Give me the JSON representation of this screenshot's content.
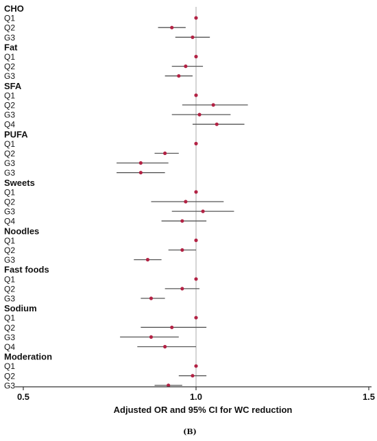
{
  "chart_data": {
    "type": "forest",
    "xlabel": "Adjusted OR and 95% CI for WC reduction",
    "panel_label": "(B)",
    "xlim": [
      0.5,
      1.5
    ],
    "xticks": [
      "0.5",
      "1.0",
      "1.5"
    ],
    "reference_line": 1.0,
    "colors": {
      "point": "#b22244",
      "ci": "#555555",
      "ref": "#aaaaaa",
      "axis": "#333333"
    },
    "groups": [
      {
        "name": "CHO",
        "rows": [
          {
            "label": "Q1",
            "or": 1.0,
            "lower": 1.0,
            "upper": 1.0
          },
          {
            "label": "Q2",
            "or": 0.93,
            "lower": 0.89,
            "upper": 0.97
          },
          {
            "label": "G3",
            "or": 0.99,
            "lower": 0.94,
            "upper": 1.04
          }
        ]
      },
      {
        "name": "Fat",
        "rows": [
          {
            "label": "Q1",
            "or": 1.0,
            "lower": 1.0,
            "upper": 1.0
          },
          {
            "label": "Q2",
            "or": 0.97,
            "lower": 0.93,
            "upper": 1.02
          },
          {
            "label": "G3",
            "or": 0.95,
            "lower": 0.91,
            "upper": 0.99
          }
        ]
      },
      {
        "name": "SFA",
        "rows": [
          {
            "label": "Q1",
            "or": 1.0,
            "lower": 1.0,
            "upper": 1.0
          },
          {
            "label": "Q2",
            "or": 1.05,
            "lower": 0.96,
            "upper": 1.15
          },
          {
            "label": "G3",
            "or": 1.01,
            "lower": 0.93,
            "upper": 1.1
          },
          {
            "label": "Q4",
            "or": 1.06,
            "lower": 0.99,
            "upper": 1.14
          }
        ]
      },
      {
        "name": "PUFA",
        "rows": [
          {
            "label": "Q1",
            "or": 1.0,
            "lower": 1.0,
            "upper": 1.0
          },
          {
            "label": "Q2",
            "or": 0.91,
            "lower": 0.88,
            "upper": 0.95
          },
          {
            "label": "G3",
            "or": 0.84,
            "lower": 0.77,
            "upper": 0.92
          },
          {
            "label": "G3",
            "or": 0.84,
            "lower": 0.77,
            "upper": 0.91
          }
        ]
      },
      {
        "name": "Sweets",
        "rows": [
          {
            "label": "Q1",
            "or": 1.0,
            "lower": 1.0,
            "upper": 1.0
          },
          {
            "label": "Q2",
            "or": 0.97,
            "lower": 0.87,
            "upper": 1.08
          },
          {
            "label": "G3",
            "or": 1.02,
            "lower": 0.93,
            "upper": 1.11
          },
          {
            "label": "Q4",
            "or": 0.96,
            "lower": 0.9,
            "upper": 1.03
          }
        ]
      },
      {
        "name": "Noodles",
        "rows": [
          {
            "label": "Q1",
            "or": 1.0,
            "lower": 1.0,
            "upper": 1.0
          },
          {
            "label": "Q2",
            "or": 0.96,
            "lower": 0.92,
            "upper": 1.0
          },
          {
            "label": "G3",
            "or": 0.86,
            "lower": 0.82,
            "upper": 0.9
          }
        ]
      },
      {
        "name": "Fast foods",
        "rows": [
          {
            "label": "Q1",
            "or": 1.0,
            "lower": 1.0,
            "upper": 1.0
          },
          {
            "label": "Q2",
            "or": 0.96,
            "lower": 0.91,
            "upper": 1.01
          },
          {
            "label": "G3",
            "or": 0.87,
            "lower": 0.84,
            "upper": 0.91
          }
        ]
      },
      {
        "name": "Sodium",
        "rows": [
          {
            "label": "Q1",
            "or": 1.0,
            "lower": 1.0,
            "upper": 1.0
          },
          {
            "label": "Q2",
            "or": 0.93,
            "lower": 0.84,
            "upper": 1.03
          },
          {
            "label": "G3",
            "or": 0.87,
            "lower": 0.78,
            "upper": 0.95
          },
          {
            "label": "Q4",
            "or": 0.91,
            "lower": 0.83,
            "upper": 1.0
          }
        ]
      },
      {
        "name": "Moderation",
        "rows": [
          {
            "label": "Q1",
            "or": 1.0,
            "lower": 1.0,
            "upper": 1.0
          },
          {
            "label": "Q2",
            "or": 0.99,
            "lower": 0.95,
            "upper": 1.03
          },
          {
            "label": "G3",
            "or": 0.92,
            "lower": 0.88,
            "upper": 0.96
          }
        ]
      }
    ]
  }
}
